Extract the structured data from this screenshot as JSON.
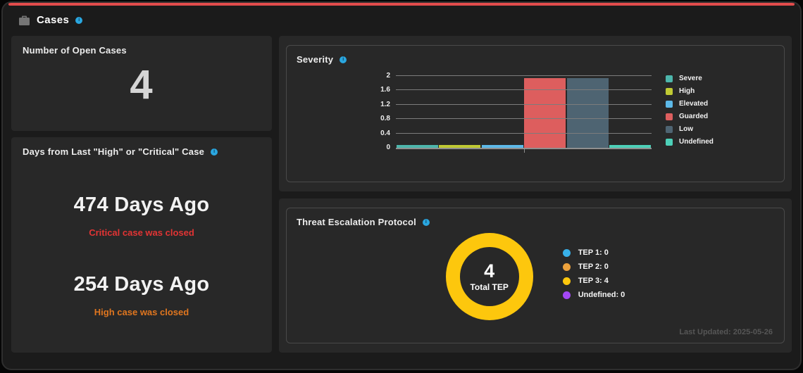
{
  "page": {
    "title": "Cases",
    "accent_color": "#e24c4c",
    "info_color": "#2aa7e0"
  },
  "open_cases_card": {
    "title": "Number of Open Cases",
    "value": "4"
  },
  "days_card": {
    "title": "Days from Last \"High\" or \"Critical\" Case",
    "critical": {
      "value": "474 Days Ago",
      "caption": "Critical case was closed",
      "caption_color": "#e23434"
    },
    "high": {
      "value": "254 Days Ago",
      "caption": "High case was closed",
      "caption_color": "#e0761f"
    }
  },
  "severity_card": {
    "title": "Severity",
    "chart_data": {
      "type": "bar",
      "categories": [
        "Severe",
        "High",
        "Elevated",
        "Guarded",
        "Low",
        "Undefined"
      ],
      "values": [
        0,
        0,
        0,
        2,
        2,
        0
      ],
      "colors": [
        "#4db6ac",
        "#c0ca33",
        "#5db9e8",
        "#dd5e5e",
        "#4e6472",
        "#4dd0b8"
      ],
      "ylim": [
        0,
        2
      ],
      "yticks": [
        0,
        0.4,
        0.8,
        1.2,
        1.6,
        2
      ],
      "ytick_labels": [
        "0",
        "0.4",
        "0.8",
        "1.2",
        "1.6",
        "2"
      ],
      "grid": true,
      "legend_position": "right"
    }
  },
  "tep_card": {
    "title": "Threat Escalation Protocol",
    "center_value": "4",
    "center_label": "Total TEP",
    "last_updated": "Last Updated: 2025-05-26",
    "chart_data": {
      "type": "donut",
      "labels": [
        "TEP 1",
        "TEP 2",
        "TEP 3",
        "Undefined"
      ],
      "values": [
        0,
        0,
        4,
        0
      ],
      "colors": [
        "#38b1ea",
        "#eda23c",
        "#fdc70d",
        "#a347f5"
      ],
      "legend_entries": [
        "TEP 1: 0",
        "TEP 2: 0",
        "TEP 3: 4",
        "Undefined: 0"
      ]
    }
  }
}
